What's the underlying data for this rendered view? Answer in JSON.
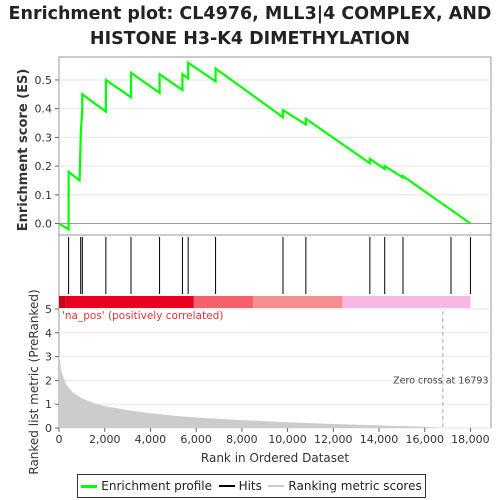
{
  "title_line1": "Enrichment plot: CL4976, MLL3|4 COMPLEX, AND",
  "title_line2": "HISTONE H3-K4 DIMETHYLATION",
  "colors": {
    "es_line": "#00ff00",
    "hits": "#000000",
    "metric_fill": "#cccccc",
    "heat_pos_dark": "#e8001c",
    "heat_pos_mid": "#f5606a",
    "heat_pos_light": "#f59090",
    "heat_neg": "#f9b8e3",
    "zero_cross": "#aaaaaa",
    "pos_label": "#e83030"
  },
  "legend": {
    "enrichment": "Enrichment profile",
    "hits": "Hits",
    "ranking": "Ranking metric scores"
  },
  "chart_data": {
    "type": "line",
    "title": "Enrichment plot: CL4976, MLL3|4 COMPLEX, AND HISTONE H3-K4 DIMETHYLATION",
    "top_panel": {
      "ylabel": "Enrichment score (ES)",
      "yticks": [
        "0.0",
        "0.1",
        "0.2",
        "0.3",
        "0.4",
        "0.5"
      ],
      "ylim": [
        -0.04,
        0.58
      ],
      "es_curve": {
        "x": [
          0,
          420,
          420,
          900,
          950,
          950,
          1020,
          1020,
          2050,
          2050,
          3150,
          3150,
          4400,
          4400,
          5400,
          5400,
          5650,
          5650,
          6850,
          6850,
          9800,
          9800,
          10800,
          10800,
          13600,
          13600,
          14250,
          14250,
          15050,
          15050,
          18000
        ],
        "y": [
          0.0,
          -0.02,
          0.18,
          0.15,
          0.3,
          0.31,
          0.4,
          0.45,
          0.39,
          0.5,
          0.44,
          0.525,
          0.455,
          0.52,
          0.465,
          0.52,
          0.505,
          0.56,
          0.495,
          0.54,
          0.37,
          0.395,
          0.345,
          0.365,
          0.21,
          0.225,
          0.19,
          0.2,
          0.16,
          0.165,
          0.0
        ]
      }
    },
    "hits_x": [
      420,
      950,
      1020,
      2050,
      3150,
      4400,
      5400,
      5650,
      6850,
      9800,
      10800,
      13600,
      14250,
      15050,
      17150,
      18000
    ],
    "bottom_panel": {
      "xlabel": "Rank in Ordered Dataset",
      "ylabel": "Ranked list metric (PreRanked)",
      "xticks": [
        "0",
        "2,000",
        "4,000",
        "6,000",
        "8,000",
        "10,000",
        "12,000",
        "14,000",
        "16,000",
        "18,000"
      ],
      "yticks": [
        "0",
        "1",
        "2",
        "3",
        "4",
        "5"
      ],
      "xlim": [
        0,
        18900
      ],
      "ylim": [
        0,
        5
      ],
      "metric_curve": {
        "x": [
          0,
          100,
          300,
          600,
          1000,
          1500,
          2000,
          3000,
          4000,
          5000,
          6000,
          8000,
          10000,
          12000,
          14000,
          16000,
          16793
        ],
        "y": [
          3.1,
          2.4,
          1.85,
          1.5,
          1.25,
          1.05,
          0.92,
          0.75,
          0.62,
          0.52,
          0.44,
          0.33,
          0.24,
          0.17,
          0.11,
          0.05,
          0.0
        ]
      },
      "zero_cross_x": 16793,
      "zero_cross_label": "Zero cross at 16793",
      "pos_label": "'na_pos' (positively correlated)"
    },
    "xmax_rank": 18000
  }
}
